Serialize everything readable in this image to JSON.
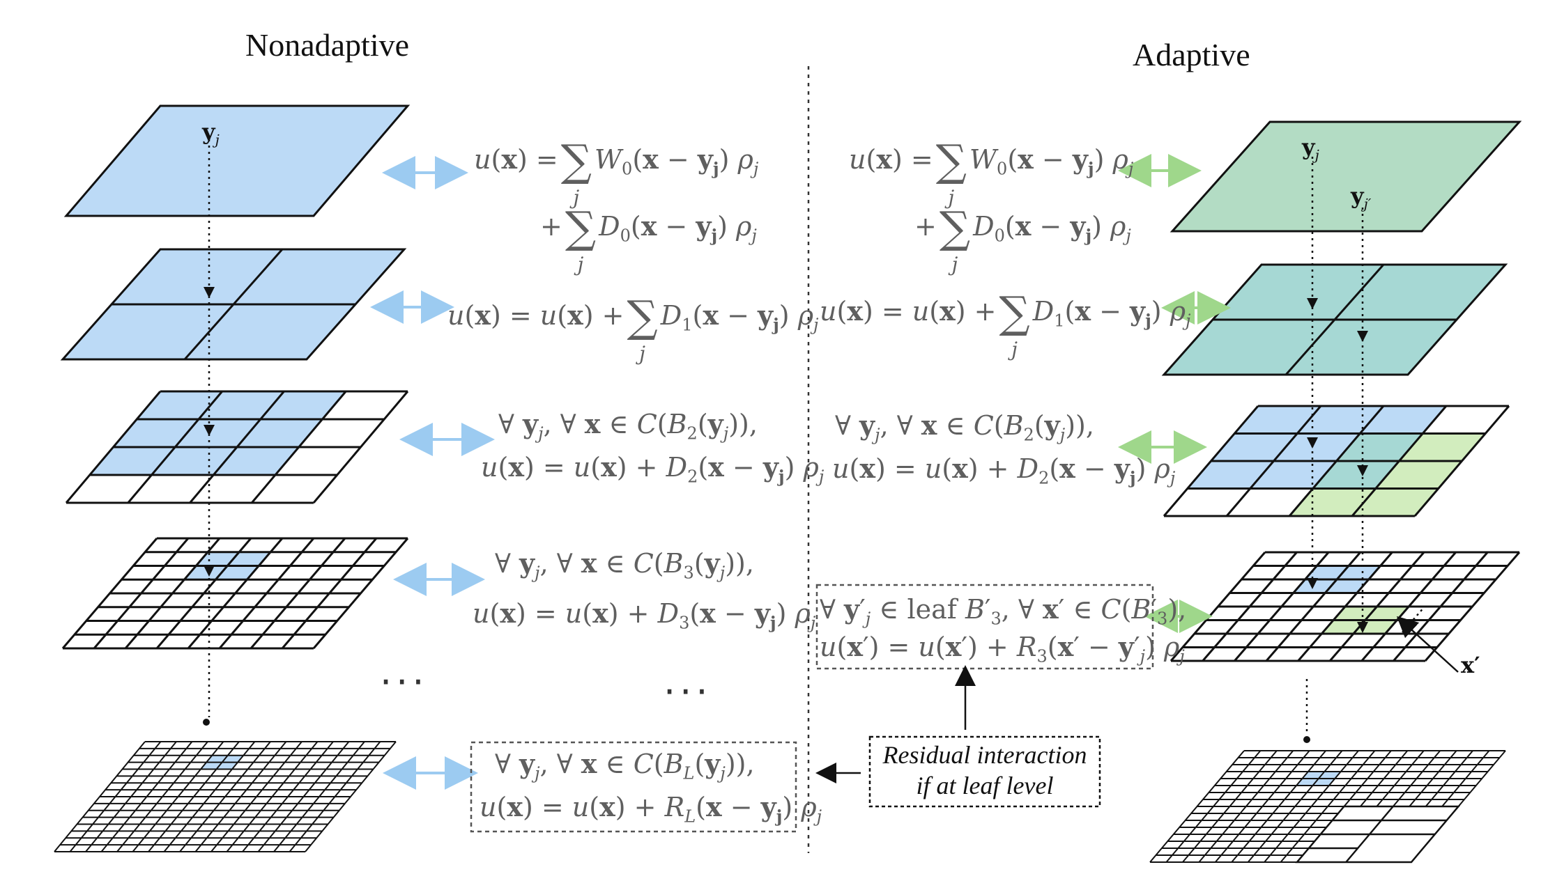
{
  "titles": {
    "left": "Nonadaptive",
    "right": "Adaptive"
  },
  "labels": {
    "yj": "y",
    "yj_sub": "j",
    "yjp": "y",
    "yjp_sub": "j′",
    "xprime": "x′"
  },
  "ellipsis": "···",
  "note": {
    "line1": "Residual interaction",
    "line2": "if at leaf level"
  },
  "colors": {
    "blue_fill": "#bcdaf6",
    "green_fill": "#b3dcc4",
    "teal_fill": "#a6d8d4",
    "lightgreen_fill": "#d2edbe",
    "blue_arrow": "#9ccbf1",
    "green_arrow": "#9fd78b",
    "equation_text": "#5f5f5f"
  }
}
